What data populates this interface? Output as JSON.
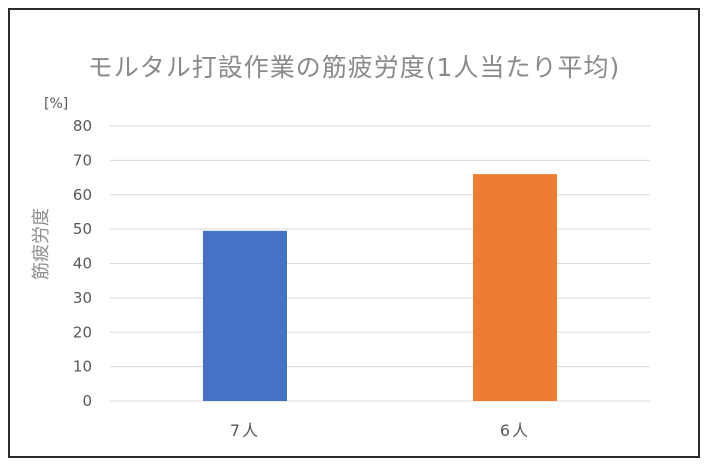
{
  "chart_data": {
    "type": "bar",
    "title": "モルタル打設作業の筋疲労度(1人当たり平均)",
    "ylabel": "筋疲労度",
    "yunit": "[%]",
    "xlabel": "",
    "categories": [
      "7人",
      "6人"
    ],
    "values": [
      49.5,
      66
    ],
    "bar_colors": [
      "#4472c4",
      "#ed7d31"
    ],
    "ylim": [
      0,
      80
    ],
    "yticks": [
      0,
      10,
      20,
      30,
      40,
      50,
      60,
      70,
      80
    ],
    "grid": true,
    "legend": "none"
  }
}
